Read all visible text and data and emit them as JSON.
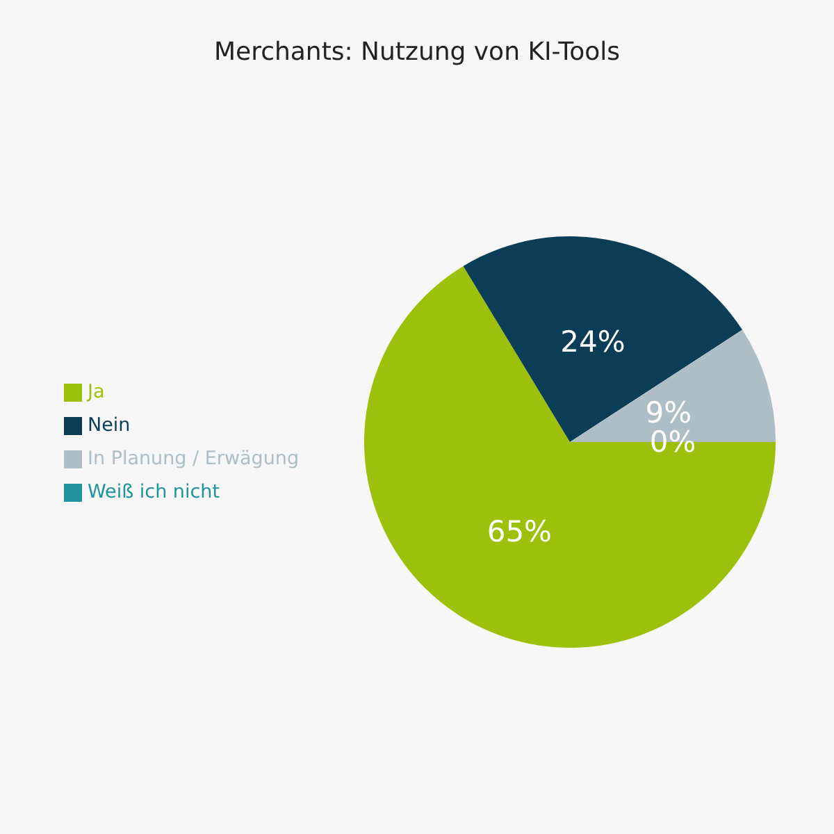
{
  "chart_data": {
    "type": "pie",
    "title": "Merchants: Nutzung von KI-Tools",
    "categories": [
      "Ja",
      "Nein",
      "In Planung / Erwägung",
      "Weiß ich nicht"
    ],
    "values": [
      65,
      24,
      9,
      0
    ],
    "colors": [
      "#9dc10b",
      "#0b3d56",
      "#adbec6",
      "#1f939e"
    ],
    "value_labels": [
      "65%",
      "24%",
      "9%",
      "0%"
    ],
    "legend": "left"
  }
}
